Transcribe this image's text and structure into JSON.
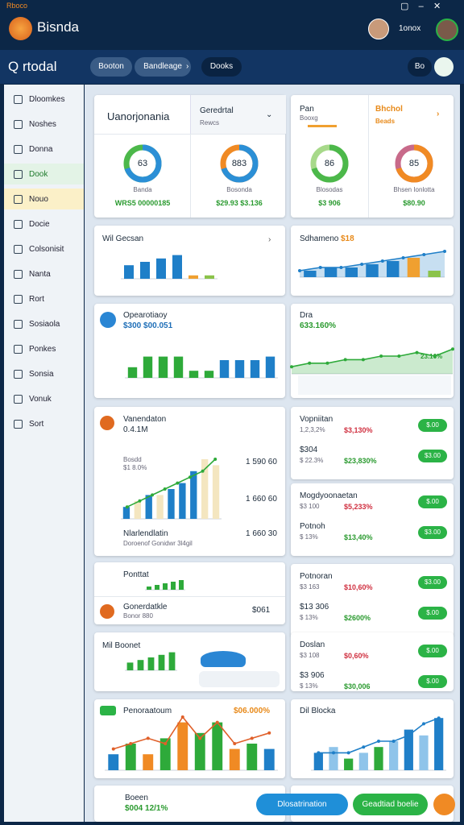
{
  "titlebar": {
    "app_tag": "Rboco",
    "app_name": "Bisnda",
    "time": "1onox"
  },
  "toolbar": {
    "title": "Q rtodal",
    "tabs": [
      "Booton",
      "Bandleage",
      "Dooks"
    ],
    "action": "Bo"
  },
  "sidebar": {
    "items": [
      "Dloomkes",
      "Noshes",
      "Donna",
      "Dook",
      "Nouo",
      "Docie",
      "Colsonisit",
      "Nanta",
      "Rort",
      "Sosiaola",
      "Ponkes",
      "Sonsia",
      "Vonuk",
      "Sort"
    ]
  },
  "summary": {
    "title": "Uanorjonania",
    "filter": "Geredrtal",
    "filter_sub": "Rewcs",
    "donut1": {
      "value": "63",
      "label": "Banda",
      "foot": "WRS5 00000185"
    },
    "donut2": {
      "value": "883",
      "label": "Bosonda",
      "foot": "$29.93 $3.136"
    }
  },
  "summary2": {
    "col1": "Pan",
    "col1_sub": "Booxg",
    "col2": "Bhchol",
    "col2_sub": "Beads",
    "donut3": {
      "value": "86",
      "label": "Blosodas",
      "foot": "$3 906"
    },
    "donut4": {
      "value": "85",
      "label": "Bhsen Ionlotta",
      "foot": "$80.90"
    }
  },
  "wil": {
    "title": "Wil Gecsan"
  },
  "sdham": {
    "title": "Sdhameno",
    "badge": "$18"
  },
  "opear": {
    "title": "Opearotiaoy",
    "sub": "$300 $00.051"
  },
  "dra": {
    "title": "Dra",
    "sub": "633.160%",
    "note": "23.16%"
  },
  "vanend": {
    "title": "Vanendaton",
    "sub": "0.4.1M",
    "row1": "Bosdd",
    "row1_sub": "$1 8.0%",
    "row2": "Nlarlendlatin",
    "row2_sub": "Doroenof Gonidwr 3l4gil",
    "v1": "1 590 60",
    "v2": "1 660 60",
    "v3": "1 660 30"
  },
  "ponttat": {
    "title": "Ponttat",
    "row": "Gonerdatkle",
    "row_sub": "Bonor 880",
    "value": "$061"
  },
  "milb": {
    "title": "Mil Boonet"
  },
  "penor": {
    "title": "Penoraatoum",
    "badge": "$06.000%"
  },
  "dil": {
    "title": "Dil Blocka"
  },
  "boeen": {
    "title": "Boeen",
    "sub": "$004 12/1%"
  },
  "lists": [
    {
      "rows": [
        {
          "title": "Vopniitan",
          "sub": "1,2,3,2%",
          "value": "$3,130%",
          "pill": "$.00"
        },
        {
          "title": "$304",
          "sub": "$ 22.3%",
          "value": "$23,830%",
          "pill": "$3.00"
        }
      ]
    },
    {
      "rows": [
        {
          "title": "Mogdyoonaetan",
          "sub": "$3 100",
          "value": "$5,233%",
          "pill": "$.00"
        },
        {
          "title": "Potnoh",
          "sub": "$ 13%",
          "value": "$13,40%",
          "pill": "$3.00"
        }
      ]
    },
    {
      "rows": [
        {
          "title": "Potnoran",
          "sub": "$3 163",
          "value": "$10,60%",
          "pill": "$3.00"
        },
        {
          "title": "$13 306",
          "sub": "$ 13%",
          "value": "$2600%",
          "pill": "$.00"
        }
      ]
    },
    {
      "rows": [
        {
          "title": "Doslan",
          "sub": "$3 108",
          "value": "$0,60%",
          "pill": "$.00"
        },
        {
          "title": "$3 906",
          "sub": "$ 13%",
          "value": "$30,006",
          "pill": "$.00"
        }
      ]
    }
  ],
  "buttons": [
    "Dlosatrination",
    "Geadtiad boelie"
  ],
  "charts": {
    "wil": {
      "ylim": [
        0,
        10
      ],
      "values": [
        4,
        5,
        6,
        7,
        1,
        1
      ],
      "colors": [
        "#1f7fc8",
        "#1f7fc8",
        "#1f7fc8",
        "#1f7fc8",
        "#f0a030",
        "#8bc34a"
      ]
    },
    "sdham": {
      "ylim": [
        0,
        10
      ],
      "values": [
        2,
        3,
        3,
        4,
        5,
        6,
        2
      ],
      "colors": [
        "#1f7fc8",
        "#1f7fc8",
        "#1f7fc8",
        "#1f7fc8",
        "#1f7fc8",
        "#f0a030",
        "#8bc34a"
      ],
      "line": [
        2,
        3,
        3,
        4,
        5,
        6,
        7,
        8
      ],
      "line_color": "#1f7fc8",
      "area": true
    },
    "opear": {
      "ylim": [
        0,
        10
      ],
      "values": [
        3,
        6,
        6,
        6,
        2,
        2,
        5,
        5,
        5,
        6
      ],
      "colors": [
        "#2eaa3a",
        "#2eaa3a",
        "#2eaa3a",
        "#2eaa3a",
        "#2eaa3a",
        "#2eaa3a",
        "#1f7fc8",
        "#1f7fc8",
        "#1f7fc8",
        "#1f7fc8"
      ]
    },
    "dra": {
      "ylim": [
        0,
        10
      ],
      "values": [],
      "colors": [],
      "line": [
        2,
        3,
        3,
        4,
        4,
        5,
        5,
        6,
        5,
        7
      ],
      "line_color": "#2eaa3a",
      "area": true
    },
    "vanend": {
      "ylim": [
        0,
        10
      ],
      "values": [
        2,
        3,
        4,
        4,
        5,
        6,
        8,
        10,
        9
      ],
      "colors": [
        "#1f7fc8",
        "#f4e6c0",
        "#1f7fc8",
        "#f4e6c0",
        "#1f7fc8",
        "#1f7fc8",
        "#1f7fc8",
        "#f4e6c0",
        "#f4e6c0"
      ],
      "line": [
        2,
        3,
        4,
        5,
        6,
        7,
        8,
        10
      ],
      "line_color": "#2eaa3a"
    },
    "ponttat": {
      "ylim": [
        0,
        10
      ],
      "values": [
        2,
        3,
        4,
        5,
        6
      ],
      "colors": [
        "#2eaa3a",
        "#2eaa3a",
        "#2eaa3a",
        "#2eaa3a",
        "#2eaa3a"
      ]
    },
    "milb": {
      "ylim": [
        0,
        10
      ],
      "values": [
        3,
        4,
        5,
        6,
        7
      ],
      "colors": [
        "#2eaa3a",
        "#2eaa3a",
        "#2eaa3a",
        "#2eaa3a",
        "#2eaa3a"
      ]
    },
    "penor": {
      "ylim": [
        0,
        10
      ],
      "values": [
        3,
        5,
        3,
        6,
        9,
        7,
        9,
        4,
        5,
        4
      ],
      "colors": [
        "#1f7fc8",
        "#2eaa3a",
        "#f08a24",
        "#2eaa3a",
        "#f08a24",
        "#2eaa3a",
        "#2eaa3a",
        "#f08a24",
        "#2eaa3a",
        "#1f7fc8"
      ],
      "line": [
        4,
        5,
        6,
        5,
        10,
        6,
        9,
        5,
        6,
        7
      ],
      "line_color": "#e0602a"
    },
    "dil": {
      "ylim": [
        0,
        10
      ],
      "values": [
        3,
        4,
        2,
        3,
        4,
        5,
        7,
        6,
        9
      ],
      "colors": [
        "#1f7fc8",
        "#8fc4ea",
        "#2eaa3a",
        "#8fc4ea",
        "#2eaa3a",
        "#8fc4ea",
        "#1f7fc8",
        "#8fc4ea",
        "#1f7fc8"
      ],
      "line": [
        3,
        3,
        3,
        4,
        5,
        5,
        6,
        8,
        9
      ],
      "line_color": "#1f7fc8"
    }
  }
}
